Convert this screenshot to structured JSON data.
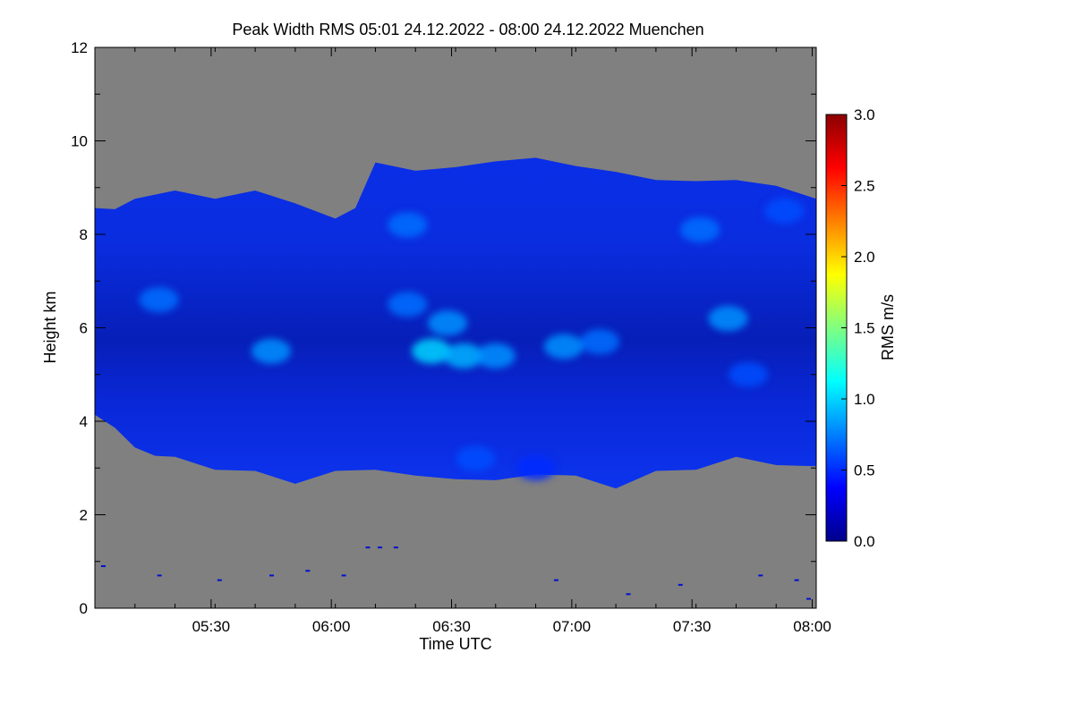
{
  "chart_data": {
    "type": "heatmap",
    "title": "Peak Width RMS   05:01 24.12.2022 - 08:00 24.12.2022 Muenchen",
    "xlabel": "Time UTC",
    "ylabel": "Height km",
    "x_ticks": [
      "05:30",
      "06:00",
      "06:30",
      "07:00",
      "07:30",
      "08:00"
    ],
    "x_tick_minutes": [
      329,
      359,
      389,
      419,
      449,
      479
    ],
    "xlim_minutes": [
      300,
      480
    ],
    "y_ticks": [
      0,
      2,
      4,
      6,
      8,
      10,
      12
    ],
    "ylim": [
      0,
      12
    ],
    "no_data_color": "#808080",
    "colorbar": {
      "label": "RMS m/s",
      "range": [
        0.0,
        3.0
      ],
      "ticks": [
        "0.0",
        "0.5",
        "1.0",
        "1.5",
        "2.0",
        "2.5",
        "3.0"
      ],
      "colors": [
        "#00008b",
        "#0000ff",
        "#0080ff",
        "#00ffff",
        "#80ff80",
        "#ffff00",
        "#ff8000",
        "#ff0000",
        "#8b0000"
      ]
    },
    "cloud_top_km": [
      [
        300,
        8.6
      ],
      [
        305,
        8.5
      ],
      [
        310,
        8.8
      ],
      [
        320,
        8.9
      ],
      [
        330,
        8.8
      ],
      [
        340,
        8.9
      ],
      [
        350,
        8.7
      ],
      [
        360,
        8.3
      ],
      [
        365,
        8.6
      ],
      [
        370,
        9.5
      ],
      [
        380,
        9.4
      ],
      [
        390,
        9.4
      ],
      [
        400,
        9.6
      ],
      [
        410,
        9.6
      ],
      [
        420,
        9.5
      ],
      [
        430,
        9.3
      ],
      [
        440,
        9.2
      ],
      [
        450,
        9.1
      ],
      [
        460,
        9.2
      ],
      [
        470,
        9.0
      ],
      [
        480,
        8.8
      ]
    ],
    "cloud_base_km": [
      [
        300,
        4.1
      ],
      [
        305,
        3.9
      ],
      [
        310,
        3.4
      ],
      [
        315,
        3.3
      ],
      [
        320,
        3.2
      ],
      [
        330,
        3.0
      ],
      [
        340,
        2.9
      ],
      [
        350,
        2.7
      ],
      [
        360,
        2.9
      ],
      [
        370,
        3.0
      ],
      [
        380,
        2.8
      ],
      [
        390,
        2.8
      ],
      [
        400,
        2.7
      ],
      [
        410,
        2.9
      ],
      [
        420,
        2.8
      ],
      [
        430,
        2.6
      ],
      [
        440,
        2.9
      ],
      [
        450,
        3.0
      ],
      [
        460,
        3.2
      ],
      [
        470,
        3.1
      ],
      [
        480,
        3.0
      ]
    ],
    "hotspots": [
      {
        "x": 384,
        "y": 5.5,
        "value": 1.0
      },
      {
        "x": 392,
        "y": 5.4,
        "value": 0.9
      },
      {
        "x": 400,
        "y": 5.4,
        "value": 0.8
      },
      {
        "x": 388,
        "y": 6.1,
        "value": 0.8
      },
      {
        "x": 378,
        "y": 6.5,
        "value": 0.7
      },
      {
        "x": 417,
        "y": 5.6,
        "value": 0.8
      },
      {
        "x": 426,
        "y": 5.7,
        "value": 0.7
      },
      {
        "x": 344,
        "y": 5.5,
        "value": 0.8
      },
      {
        "x": 316,
        "y": 6.6,
        "value": 0.7
      },
      {
        "x": 378,
        "y": 8.2,
        "value": 0.7
      },
      {
        "x": 458,
        "y": 6.2,
        "value": 0.8
      },
      {
        "x": 451,
        "y": 8.1,
        "value": 0.7
      },
      {
        "x": 472,
        "y": 8.5,
        "value": 0.6
      },
      {
        "x": 463,
        "y": 5.0,
        "value": 0.6
      },
      {
        "x": 395,
        "y": 3.2,
        "value": 0.6
      },
      {
        "x": 410,
        "y": 3.0,
        "value": 0.5
      }
    ],
    "low_echoes": [
      {
        "x": 371,
        "y": 1.3
      },
      {
        "x": 368,
        "y": 1.3
      },
      {
        "x": 375,
        "y": 1.3
      },
      {
        "x": 302,
        "y": 0.9
      },
      {
        "x": 316,
        "y": 0.7
      },
      {
        "x": 331,
        "y": 0.6
      },
      {
        "x": 344,
        "y": 0.7
      },
      {
        "x": 353,
        "y": 0.8
      },
      {
        "x": 362,
        "y": 0.7
      },
      {
        "x": 415,
        "y": 0.6
      },
      {
        "x": 433,
        "y": 0.3
      },
      {
        "x": 446,
        "y": 0.5
      },
      {
        "x": 466,
        "y": 0.7
      },
      {
        "x": 475,
        "y": 0.6
      },
      {
        "x": 478,
        "y": 0.2
      }
    ]
  }
}
